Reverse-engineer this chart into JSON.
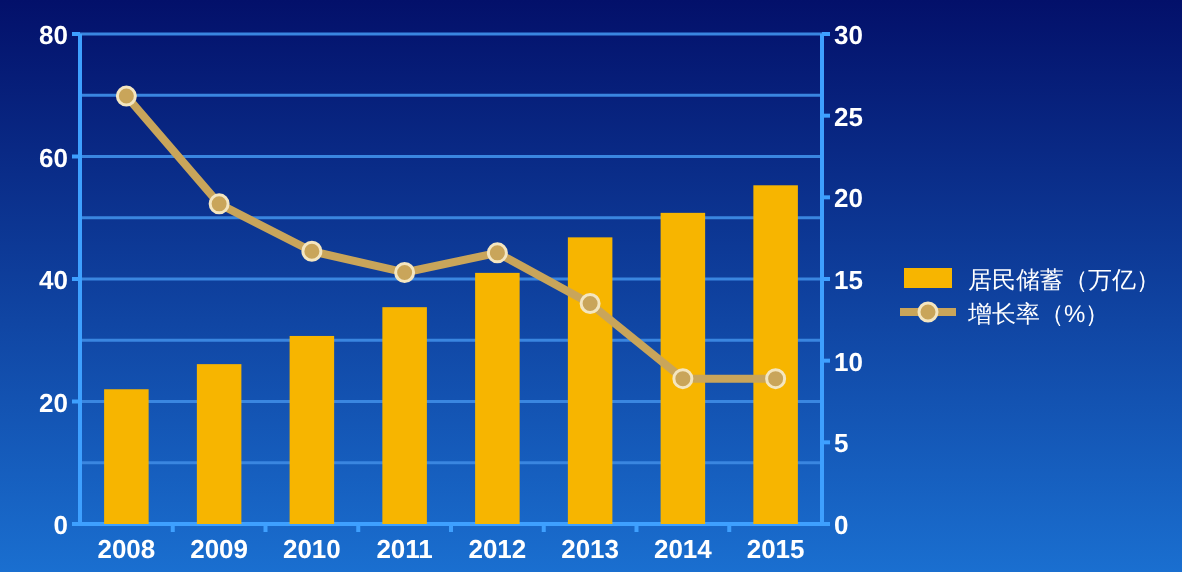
{
  "chart_data": {
    "type": "bar",
    "categories": [
      "2008",
      "2009",
      "2010",
      "2011",
      "2012",
      "2013",
      "2014",
      "2015"
    ],
    "series": [
      {
        "name": "居民储蓄（万亿）",
        "color": "#f7b500",
        "values": [
          22.0,
          26.1,
          30.7,
          35.4,
          41.0,
          46.8,
          50.8,
          55.3
        ]
      },
      {
        "name": "增长率（%）",
        "type": "line",
        "axis": "y2",
        "color": "#c9a55a",
        "values": [
          26.2,
          19.6,
          16.7,
          15.4,
          16.6,
          13.5,
          8.9,
          8.9
        ]
      }
    ],
    "ylim": [
      0,
      80
    ],
    "yticks": [
      0,
      {
        "value": 10,
        "label": null
      },
      20,
      {
        "value": 30,
        "label": null
      },
      40,
      {
        "value": 50,
        "label": null
      },
      60,
      {
        "value": 70,
        "label": null
      },
      80
    ],
    "y2lim": [
      0,
      30
    ],
    "y2ticks": [
      0,
      5,
      10,
      15,
      20,
      25,
      30
    ],
    "grid": "y",
    "legend": "right",
    "marker": "circle",
    "line_style": "solid"
  }
}
